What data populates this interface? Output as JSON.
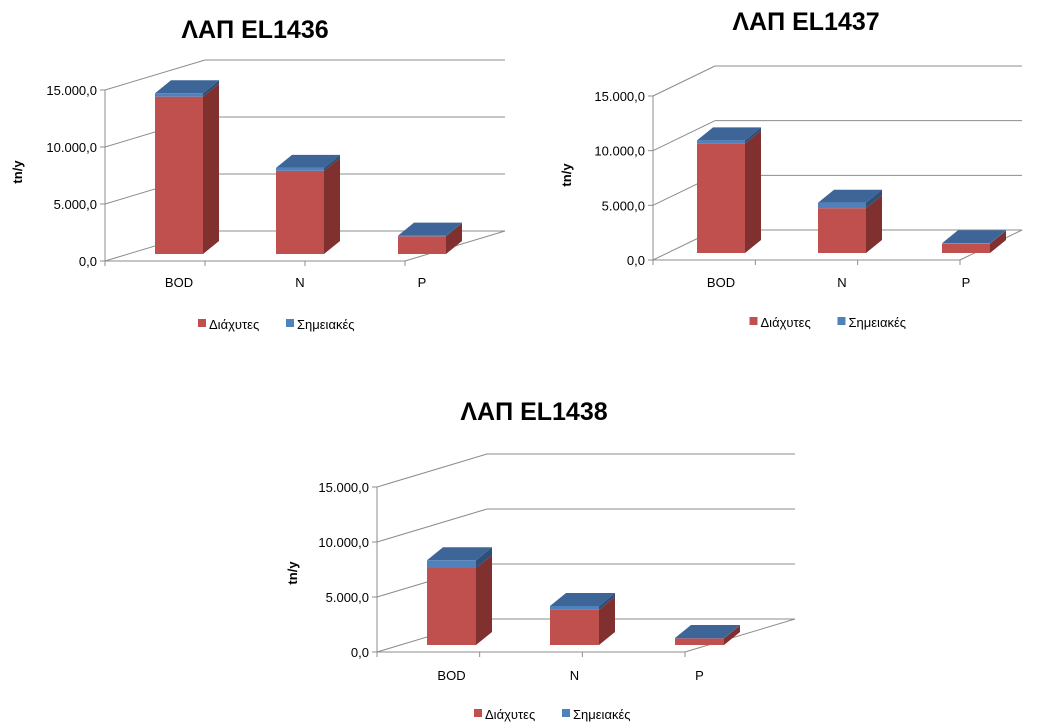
{
  "colors": {
    "diffuse_front": "#c0504d",
    "diffuse_side": "#7f302f",
    "diffuse_top": "#9a3b38",
    "point_front": "#4f81bd",
    "point_side": "#2d4f78",
    "point_top": "#3e6597",
    "grid": "#8c8c8c",
    "text": "#000000"
  },
  "chart_data": [
    {
      "type": "bar",
      "stacked": true,
      "three_d": true,
      "title": "ΛΑΠ EL1436",
      "ylabel": "tn/y",
      "xlabel": "",
      "categories": [
        "BOD",
        "N",
        "P"
      ],
      "ylim": [
        0,
        15000
      ],
      "yticks": [
        0,
        5000,
        10000,
        15000
      ],
      "ytick_labels": [
        "0,0",
        "5.000,0",
        "10.000,0",
        "15.000,0"
      ],
      "grid": true,
      "legend": "bottom",
      "series": [
        {
          "name": "Διάχυτες",
          "values": [
            13800,
            7300,
            1550
          ]
        },
        {
          "name": "Σημειακές",
          "values": [
            300,
            250,
            60
          ]
        }
      ]
    },
    {
      "type": "bar",
      "stacked": true,
      "three_d": true,
      "title": "ΛΑΠ EL1437",
      "ylabel": "tn/y",
      "xlabel": "",
      "categories": [
        "BOD",
        "N",
        "P"
      ],
      "ylim": [
        0,
        15000
      ],
      "yticks": [
        0,
        5000,
        10000,
        15000
      ],
      "ytick_labels": [
        "0,0",
        "5.000,0",
        "10.000,0",
        "15.000,0"
      ],
      "grid": true,
      "legend": "bottom",
      "series": [
        {
          "name": "Διάχυτες",
          "values": [
            10000,
            4100,
            850
          ]
        },
        {
          "name": "Σημειακές",
          "values": [
            300,
            500,
            40
          ]
        }
      ]
    },
    {
      "type": "bar",
      "stacked": true,
      "three_d": true,
      "title": "ΛΑΠ EL1438",
      "ylabel": "tn/y",
      "xlabel": "",
      "categories": [
        "BOD",
        "N",
        "P"
      ],
      "ylim": [
        0,
        15000
      ],
      "yticks": [
        0,
        5000,
        10000,
        15000
      ],
      "ytick_labels": [
        "0,0",
        "5.000,0",
        "10.000,0",
        "15.000,0"
      ],
      "grid": true,
      "legend": "bottom",
      "series": [
        {
          "name": "Διάχυτες",
          "values": [
            7000,
            3200,
            600
          ]
        },
        {
          "name": "Σημειακές",
          "values": [
            700,
            350,
            40
          ]
        }
      ]
    }
  ]
}
